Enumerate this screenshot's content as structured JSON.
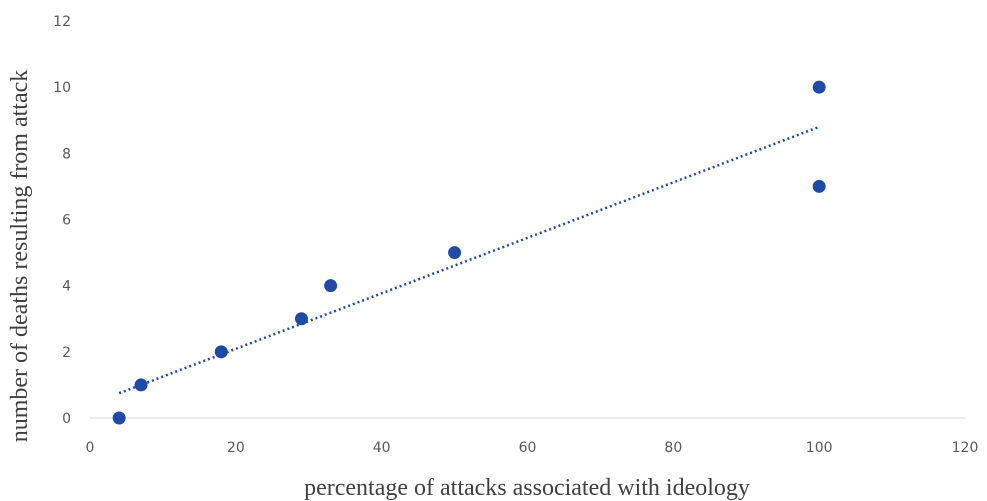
{
  "chart_data": {
    "type": "scatter",
    "title": "",
    "xlabel": "percentage of attacks associated with ideology",
    "ylabel": "number of deaths resulting from attack",
    "xlim": [
      0,
      120
    ],
    "ylim": [
      0,
      12
    ],
    "xticks": [
      0,
      20,
      40,
      60,
      80,
      100,
      120
    ],
    "yticks": [
      0,
      2,
      4,
      6,
      8,
      10,
      12
    ],
    "grid": false,
    "legend": "none",
    "series": [
      {
        "x": [
          4,
          7,
          18,
          29,
          33,
          50,
          100,
          100
        ],
        "y": [
          0,
          1,
          2,
          3,
          4,
          5,
          10,
          7
        ],
        "color": "#1f4aa8"
      }
    ],
    "trendline": {
      "style": "dotted",
      "color": "#1f4aa8",
      "x": [
        4,
        100
      ],
      "y": [
        0.75,
        8.8
      ]
    }
  }
}
